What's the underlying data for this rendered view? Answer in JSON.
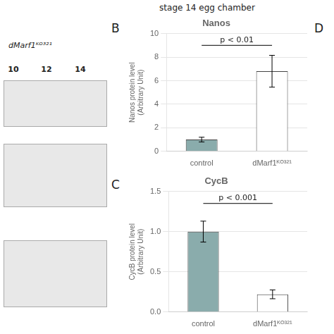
{
  "title": "stage 14 egg chamber",
  "annotations": [
    "B",
    "C",
    "D",
    "dMarf1ᴷᴼ³²¹",
    "10",
    "12",
    "14"
  ],
  "chart_data": [
    {
      "type": "bar",
      "title": "Nanos",
      "y_label": "Nanos protein level\n(Arbitrary Unit)",
      "categories": [
        "control",
        "dMarf1ᴷᴼ³²¹"
      ],
      "values": [
        1.0,
        6.8
      ],
      "errors": [
        0.2,
        1.35
      ],
      "colors": [
        "#8aacac",
        "#ffffff"
      ],
      "ylim": [
        0,
        10
      ],
      "yticks": [
        0,
        2,
        4,
        6,
        8,
        10
      ],
      "grid": true,
      "annotations": [
        {
          "text": "p < 0.01",
          "y": 9.0
        }
      ]
    },
    {
      "type": "bar",
      "title": "CycB",
      "y_label": "CycB protein level\n(Arbitrary Unit)",
      "categories": [
        "control",
        "dMarf1ᴷᴼ³²¹"
      ],
      "values": [
        1.0,
        0.22
      ],
      "errors": [
        0.13,
        0.055
      ],
      "colors": [
        "#8aacac",
        "#ffffff"
      ],
      "ylim": [
        0,
        1.5
      ],
      "yticks": [
        {
          "value": 0,
          "label": "0.0"
        },
        0.5,
        {
          "value": 1.0,
          "label": "1.0"
        },
        1.5
      ],
      "grid": true,
      "annotations": [
        {
          "text": "p < 0.001",
          "y": 1.35
        }
      ]
    }
  ]
}
